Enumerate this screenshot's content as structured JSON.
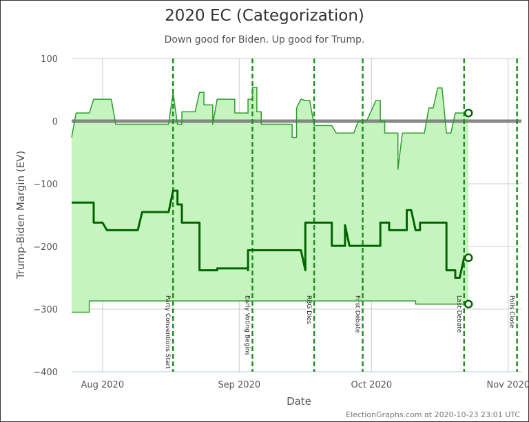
{
  "chart_data": {
    "type": "line",
    "title": "2020 EC (Categorization)",
    "subtitle": "Down good for Biden. Up good for Trump.",
    "xlabel": "Date",
    "ylabel": "Trump-Biden Margin (EV)",
    "xlim": [
      "2020-07-25",
      "2020-11-04"
    ],
    "ylim": [
      -400,
      100
    ],
    "yticks": [
      100,
      0,
      -100,
      -200,
      -300,
      -400
    ],
    "ytick_labels": [
      "100",
      "0",
      "−100",
      "−200",
      "−300",
      "−400"
    ],
    "xticks": [
      "2020-08-01",
      "2020-09-01",
      "2020-10-01",
      "2020-11-01"
    ],
    "xtick_labels": [
      "Aug 2020",
      "Sep 2020",
      "Oct 2020",
      "Nov 2020"
    ],
    "grid": true,
    "footer": "ElectionGraphs.com at 2020-10-23 23:01 UTC",
    "colors": {
      "fill": "#c6f4be",
      "upper": "#2e9a2e",
      "expected": "#006400",
      "lower": "#2e9a2e",
      "zero_line": "#777777",
      "event_line": "#1f8f1f",
      "event_line_light": "#4cbf4c"
    },
    "series": [
      {
        "role": "upper",
        "points": [
          [
            "2020-07-25",
            -26
          ],
          [
            "2020-07-26",
            13
          ],
          [
            "2020-07-29",
            13
          ],
          [
            "2020-07-30",
            35
          ],
          [
            "2020-08-03",
            35
          ],
          [
            "2020-08-04",
            -5
          ],
          [
            "2020-08-16",
            -5
          ],
          [
            "2020-08-17",
            46
          ],
          [
            "2020-08-18",
            -5
          ],
          [
            "2020-08-19",
            -5
          ],
          [
            "2020-08-19",
            15
          ],
          [
            "2020-08-22",
            15
          ],
          [
            "2020-08-23",
            46
          ],
          [
            "2020-08-24",
            46
          ],
          [
            "2020-08-24",
            26
          ],
          [
            "2020-08-26",
            26
          ],
          [
            "2020-08-26",
            -5
          ],
          [
            "2020-08-27",
            35
          ],
          [
            "2020-08-31",
            35
          ],
          [
            "2020-08-31",
            13
          ],
          [
            "2020-09-03",
            13
          ],
          [
            "2020-09-03",
            35
          ],
          [
            "2020-09-04",
            35
          ],
          [
            "2020-09-04",
            54
          ],
          [
            "2020-09-05",
            54
          ],
          [
            "2020-09-05",
            15
          ],
          [
            "2020-09-06",
            15
          ],
          [
            "2020-09-06",
            -5
          ],
          [
            "2020-09-13",
            -5
          ],
          [
            "2020-09-13",
            -26
          ],
          [
            "2020-09-14",
            -26
          ],
          [
            "2020-09-14",
            21
          ],
          [
            "2020-09-15",
            35
          ],
          [
            "2020-09-16",
            33
          ],
          [
            "2020-09-17",
            33
          ],
          [
            "2020-09-18",
            -7
          ],
          [
            "2020-09-22",
            -7
          ],
          [
            "2020-09-23",
            -19
          ],
          [
            "2020-09-27",
            -19
          ],
          [
            "2020-09-28",
            0
          ],
          [
            "2020-09-30",
            2
          ],
          [
            "2020-10-02",
            33
          ],
          [
            "2020-10-03",
            33
          ],
          [
            "2020-10-03",
            0
          ],
          [
            "2020-10-04",
            0
          ],
          [
            "2020-10-04",
            -19
          ],
          [
            "2020-10-07",
            -19
          ],
          [
            "2020-10-07",
            -77
          ],
          [
            "2020-10-08",
            -19
          ],
          [
            "2020-10-13",
            -19
          ],
          [
            "2020-10-14",
            21
          ],
          [
            "2020-10-15",
            21
          ],
          [
            "2020-10-16",
            53
          ],
          [
            "2020-10-17",
            53
          ],
          [
            "2020-10-18",
            -19
          ],
          [
            "2020-10-19",
            -19
          ],
          [
            "2020-10-20",
            13
          ],
          [
            "2020-10-23",
            13
          ]
        ]
      },
      {
        "role": "expected",
        "points": [
          [
            "2020-07-25",
            -130
          ],
          [
            "2020-07-30",
            -130
          ],
          [
            "2020-07-30",
            -162
          ],
          [
            "2020-08-01",
            -162
          ],
          [
            "2020-08-02",
            -174
          ],
          [
            "2020-08-09",
            -174
          ],
          [
            "2020-08-10",
            -145
          ],
          [
            "2020-08-16",
            -145
          ],
          [
            "2020-08-17",
            -111
          ],
          [
            "2020-08-18",
            -111
          ],
          [
            "2020-08-18",
            -133
          ],
          [
            "2020-08-19",
            -133
          ],
          [
            "2020-08-19",
            -162
          ],
          [
            "2020-08-23",
            -162
          ],
          [
            "2020-08-23",
            -238
          ],
          [
            "2020-08-27",
            -238
          ],
          [
            "2020-08-27",
            -235
          ],
          [
            "2020-09-03",
            -235
          ],
          [
            "2020-09-03",
            -238
          ],
          [
            "2020-09-03",
            -206
          ],
          [
            "2020-09-15",
            -206
          ],
          [
            "2020-09-16",
            -238
          ],
          [
            "2020-09-16",
            -162
          ],
          [
            "2020-09-22",
            -162
          ],
          [
            "2020-09-22",
            -199
          ],
          [
            "2020-09-25",
            -199
          ],
          [
            "2020-09-25",
            -166
          ],
          [
            "2020-09-26",
            -199
          ],
          [
            "2020-10-03",
            -199
          ],
          [
            "2020-10-03",
            -162
          ],
          [
            "2020-10-05",
            -162
          ],
          [
            "2020-10-05",
            -174
          ],
          [
            "2020-10-09",
            -174
          ],
          [
            "2020-10-09",
            -142
          ],
          [
            "2020-10-10",
            -142
          ],
          [
            "2020-10-11",
            -174
          ],
          [
            "2020-10-12",
            -174
          ],
          [
            "2020-10-12",
            -162
          ],
          [
            "2020-10-18",
            -162
          ],
          [
            "2020-10-18",
            -238
          ],
          [
            "2020-10-20",
            -238
          ],
          [
            "2020-10-20",
            -250
          ],
          [
            "2020-10-21",
            -250
          ],
          [
            "2020-10-22",
            -218
          ],
          [
            "2020-10-23",
            -218
          ]
        ]
      },
      {
        "role": "lower",
        "points": [
          [
            "2020-07-25",
            -305
          ],
          [
            "2020-07-29",
            -305
          ],
          [
            "2020-07-29",
            -287
          ],
          [
            "2020-10-11",
            -287
          ],
          [
            "2020-10-11",
            -292
          ],
          [
            "2020-10-23",
            -292
          ]
        ]
      }
    ],
    "events": [
      {
        "date": "2020-08-17",
        "label": "Party Conventions Start"
      },
      {
        "date": "2020-09-04",
        "label": "Early Voting Begins"
      },
      {
        "date": "2020-09-18",
        "label": "RBG Dies"
      },
      {
        "date": "2020-09-29",
        "label": "First Debate"
      },
      {
        "date": "2020-10-22",
        "label": "Last Debate"
      },
      {
        "date": "2020-11-03",
        "label": "Polls Close"
      }
    ]
  }
}
